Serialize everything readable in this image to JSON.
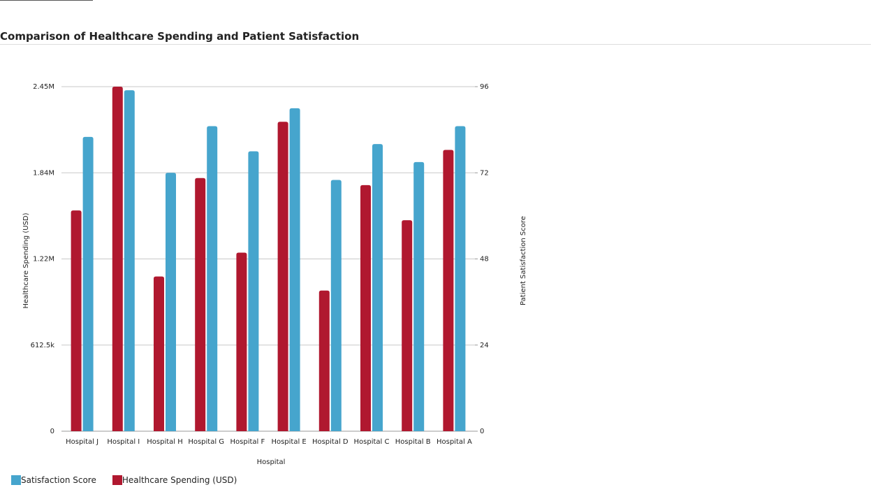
{
  "chart_data": {
    "type": "bar",
    "title": "Comparison of Healthcare Spending and Patient Satisfaction",
    "xlabel": "Hospital",
    "ylabel_left": "Healthcare Spending (USD)",
    "ylabel_right": "Patient Satisfaction Score",
    "categories": [
      "Hospital J",
      "Hospital I",
      "Hospital H",
      "Hospital G",
      "Hospital F",
      "Hospital E",
      "Hospital D",
      "Hospital C",
      "Hospital B",
      "Hospital A"
    ],
    "series": [
      {
        "name": "Healthcare Spending (USD)",
        "axis": "left",
        "color": "#b0182f",
        "values": [
          1570000,
          2450000,
          1100000,
          1800000,
          1270000,
          2200000,
          1000000,
          1750000,
          1500000,
          2000000
        ]
      },
      {
        "name": "Satisfaction Score",
        "axis": "right",
        "color": "#46a5cd",
        "values": [
          82,
          95,
          72,
          85,
          78,
          90,
          70,
          80,
          75,
          85
        ]
      }
    ],
    "ylim_left": [
      0,
      2450000
    ],
    "ylim_right": [
      0,
      96
    ],
    "left_ticks": [
      "0",
      "612.5k",
      "1.22M",
      "1.84M",
      "2.45M"
    ],
    "right_ticks": [
      "0",
      "24",
      "48",
      "72",
      "96"
    ],
    "grid": true,
    "legend": {
      "position": "bottom-left",
      "items": [
        {
          "label": "Satisfaction Score",
          "color": "#46a5cd"
        },
        {
          "label": "Healthcare Spending (USD)",
          "color": "#b0182f"
        }
      ]
    }
  }
}
